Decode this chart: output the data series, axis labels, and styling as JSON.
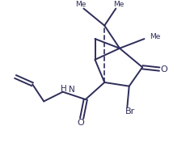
{
  "background": "#ffffff",
  "line_color": "#2d2d5a",
  "line_width": 1.4,
  "fig_width": 2.35,
  "fig_height": 1.77,
  "dpi": 100,
  "xlim": [
    0,
    10
  ],
  "ylim": [
    0,
    7.55
  ],
  "text_N_color": "#2d2d5a",
  "text_H_color": "#2d2d5a",
  "text_O_color": "#2d2d5a",
  "text_Br_color": "#2d2d5a"
}
